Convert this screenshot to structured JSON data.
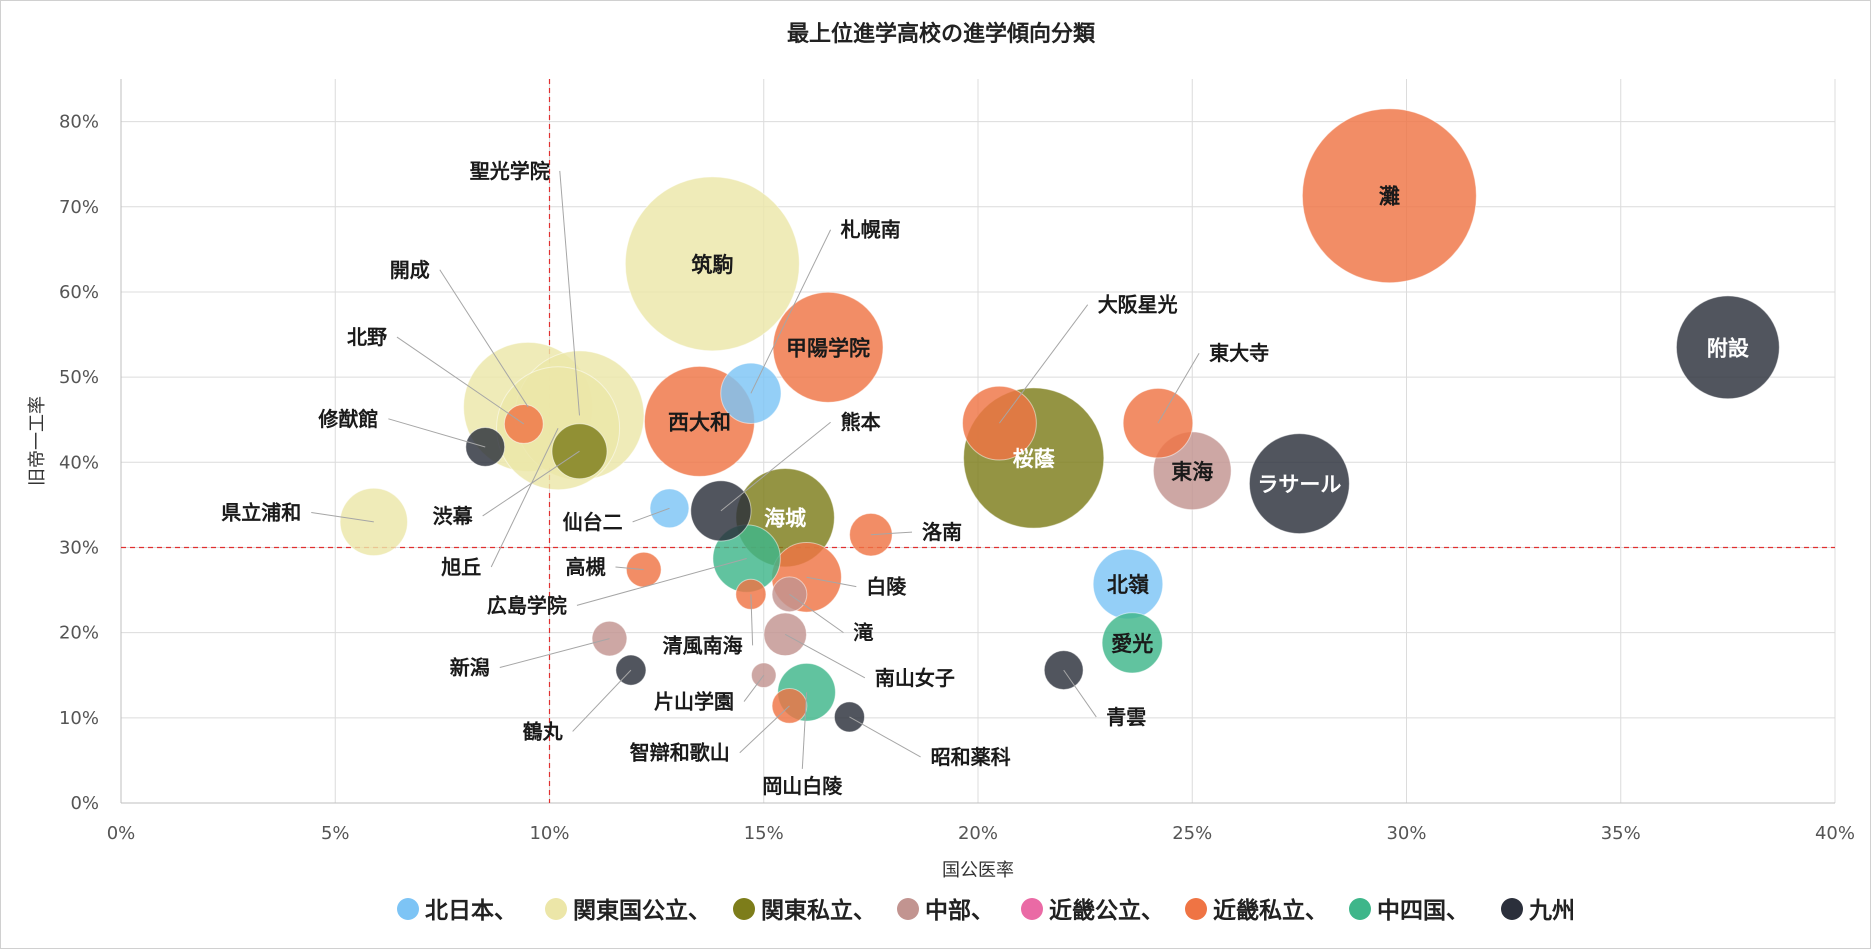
{
  "chart_data": {
    "type": "scatter",
    "subtype": "bubble",
    "title": "最上位進学高校の進学傾向分類",
    "xlabel": "国公医率",
    "ylabel": "旧帝一工率",
    "xlim": [
      0,
      0.4
    ],
    "ylim": [
      0,
      0.85
    ],
    "x_ticks": [
      0,
      0.05,
      0.1,
      0.15,
      0.2,
      0.25,
      0.3,
      0.35,
      0.4
    ],
    "x_tick_labels": [
      "0%",
      "5%",
      "10%",
      "15%",
      "20%",
      "25%",
      "30%",
      "35%",
      "40%"
    ],
    "y_ticks": [
      0,
      0.1,
      0.2,
      0.3,
      0.4,
      0.5,
      0.6,
      0.7,
      0.8
    ],
    "y_tick_labels": [
      "0%",
      "10%",
      "20%",
      "30%",
      "40%",
      "50%",
      "60%",
      "70%",
      "80%"
    ],
    "grid": true,
    "reference_lines": {
      "x": 0.1,
      "y": 0.3,
      "color": "#e03030",
      "style": "dashed"
    },
    "legend_position": "bottom",
    "series": [
      {
        "name": "北日本、",
        "color": "#7dc4f5"
      },
      {
        "name": "関東国公立、",
        "color": "#ece6a8"
      },
      {
        "name": "関東私立、",
        "color": "#7d7d1a"
      },
      {
        "name": "中部、",
        "color": "#c29490"
      },
      {
        "name": "近畿公立、",
        "color": "#ea6aa5"
      },
      {
        "name": "近畿私立、",
        "color": "#ef7444"
      },
      {
        "name": "中四国、",
        "color": "#3eb68a"
      },
      {
        "name": "九州",
        "color": "#2b2f3b"
      }
    ],
    "points": [
      {
        "label": "灘",
        "series": 5,
        "x": 0.296,
        "y": 0.713,
        "size": 100,
        "inside": true
      },
      {
        "label": "附設",
        "series": 7,
        "x": 0.375,
        "y": 0.535,
        "size": 35,
        "inside": true,
        "light": true
      },
      {
        "label": "筑駒",
        "series": 1,
        "x": 0.138,
        "y": 0.633,
        "size": 100,
        "inside": true
      },
      {
        "label": "甲陽学院",
        "series": 5,
        "x": 0.165,
        "y": 0.535,
        "size": 40,
        "inside": true
      },
      {
        "label": "西大和",
        "series": 5,
        "x": 0.135,
        "y": 0.448,
        "size": 40,
        "inside": true
      },
      {
        "label": "桜蔭",
        "series": 2,
        "x": 0.213,
        "y": 0.405,
        "size": 65,
        "inside": true,
        "light": true
      },
      {
        "label": "東海",
        "series": 3,
        "x": 0.25,
        "y": 0.39,
        "size": 20,
        "inside": true
      },
      {
        "label": "ラサール",
        "series": 7,
        "x": 0.275,
        "y": 0.375,
        "size": 33,
        "inside": true,
        "light": true
      },
      {
        "label": "北嶺",
        "series": 0,
        "x": 0.235,
        "y": 0.257,
        "size": 16,
        "inside": true
      },
      {
        "label": "愛光",
        "series": 6,
        "x": 0.236,
        "y": 0.188,
        "size": 12,
        "inside": true
      },
      {
        "label": "海城",
        "series": 2,
        "x": 0.155,
        "y": 0.335,
        "size": 32,
        "inside": true,
        "light": true
      },
      {
        "label": "開成",
        "series": 1,
        "x": 0.095,
        "y": 0.465,
        "size": 55,
        "lx": 0.073,
        "ly": 0.619,
        "anchor": "end"
      },
      {
        "label": "聖光学院",
        "series": 1,
        "x": 0.107,
        "y": 0.455,
        "size": 55,
        "lx": 0.101,
        "ly": 0.735,
        "anchor": "end"
      },
      {
        "label": "北野",
        "series": 5,
        "x": 0.094,
        "y": 0.445,
        "size": 5,
        "lx": 0.063,
        "ly": 0.54,
        "anchor": "end"
      },
      {
        "label": "修猷館",
        "series": 7,
        "x": 0.085,
        "y": 0.418,
        "size": 5,
        "lx": 0.061,
        "ly": 0.444,
        "anchor": "end"
      },
      {
        "label": "渋幕",
        "series": 2,
        "x": 0.107,
        "y": 0.413,
        "size": 10,
        "lx": 0.083,
        "ly": 0.33,
        "anchor": "end"
      },
      {
        "label": "旭丘",
        "series": 1,
        "x": 0.102,
        "y": 0.44,
        "size": 50,
        "lx": 0.085,
        "ly": 0.27,
        "anchor": "end"
      },
      {
        "label": "広島学院",
        "series": 6,
        "x": 0.146,
        "y": 0.287,
        "size": 15,
        "lx": 0.105,
        "ly": 0.225,
        "anchor": "end"
      },
      {
        "label": "県立浦和",
        "series": 1,
        "x": 0.059,
        "y": 0.33,
        "size": 15,
        "lx": 0.043,
        "ly": 0.334,
        "anchor": "end"
      },
      {
        "label": "仙台二",
        "series": 0,
        "x": 0.128,
        "y": 0.346,
        "size": 5,
        "lx": 0.118,
        "ly": 0.323,
        "anchor": "end"
      },
      {
        "label": "札幌南",
        "series": 0,
        "x": 0.147,
        "y": 0.481,
        "size": 12,
        "lx": 0.167,
        "ly": 0.666,
        "anchor": "start"
      },
      {
        "label": "熊本",
        "series": 7,
        "x": 0.14,
        "y": 0.343,
        "size": 12,
        "lx": 0.167,
        "ly": 0.44,
        "anchor": "start"
      },
      {
        "label": "大阪星光",
        "series": 5,
        "x": 0.205,
        "y": 0.446,
        "size": 18,
        "lx": 0.227,
        "ly": 0.578,
        "anchor": "start"
      },
      {
        "label": "東大寺",
        "series": 5,
        "x": 0.242,
        "y": 0.446,
        "size": 16,
        "lx": 0.253,
        "ly": 0.521,
        "anchor": "start"
      },
      {
        "label": "洛南",
        "series": 5,
        "x": 0.175,
        "y": 0.315,
        "size": 6,
        "lx": 0.186,
        "ly": 0.311,
        "anchor": "start"
      },
      {
        "label": "高槻",
        "series": 5,
        "x": 0.122,
        "y": 0.274,
        "size": 4,
        "lx": 0.114,
        "ly": 0.27,
        "anchor": "end"
      },
      {
        "label": "白陵",
        "series": 5,
        "x": 0.16,
        "y": 0.265,
        "size": 16,
        "lx": 0.173,
        "ly": 0.247,
        "anchor": "start"
      },
      {
        "label": "滝",
        "series": 3,
        "x": 0.156,
        "y": 0.245,
        "size": 4,
        "lx": 0.17,
        "ly": 0.193,
        "anchor": "start"
      },
      {
        "label": "清風南海",
        "series": 5,
        "x": 0.147,
        "y": 0.245,
        "size": 3,
        "lx": 0.146,
        "ly": 0.178,
        "anchor": "end"
      },
      {
        "label": "南山女子",
        "series": 3,
        "x": 0.155,
        "y": 0.198,
        "size": 6,
        "lx": 0.175,
        "ly": 0.14,
        "anchor": "start"
      },
      {
        "label": "新潟",
        "series": 3,
        "x": 0.114,
        "y": 0.193,
        "size": 4,
        "lx": 0.087,
        "ly": 0.152,
        "anchor": "end"
      },
      {
        "label": "鶴丸",
        "series": 7,
        "x": 0.119,
        "y": 0.156,
        "size": 3,
        "lx": 0.104,
        "ly": 0.077,
        "anchor": "end"
      },
      {
        "label": "片山学園",
        "series": 3,
        "x": 0.15,
        "y": 0.15,
        "size": 2,
        "lx": 0.144,
        "ly": 0.112,
        "anchor": "end"
      },
      {
        "label": "智辯和歌山",
        "series": 5,
        "x": 0.156,
        "y": 0.114,
        "size": 4,
        "lx": 0.143,
        "ly": 0.052,
        "anchor": "end"
      },
      {
        "label": "岡山白陵",
        "series": 6,
        "x": 0.16,
        "y": 0.13,
        "size": 11,
        "lx": 0.159,
        "ly": 0.033,
        "anchor": "middle"
      },
      {
        "label": "昭和薬科",
        "series": 7,
        "x": 0.17,
        "y": 0.101,
        "size": 3,
        "lx": 0.188,
        "ly": 0.047,
        "anchor": "start"
      },
      {
        "label": "青雲",
        "series": 7,
        "x": 0.22,
        "y": 0.156,
        "size": 5,
        "lx": 0.229,
        "ly": 0.094,
        "anchor": "start"
      }
    ]
  }
}
